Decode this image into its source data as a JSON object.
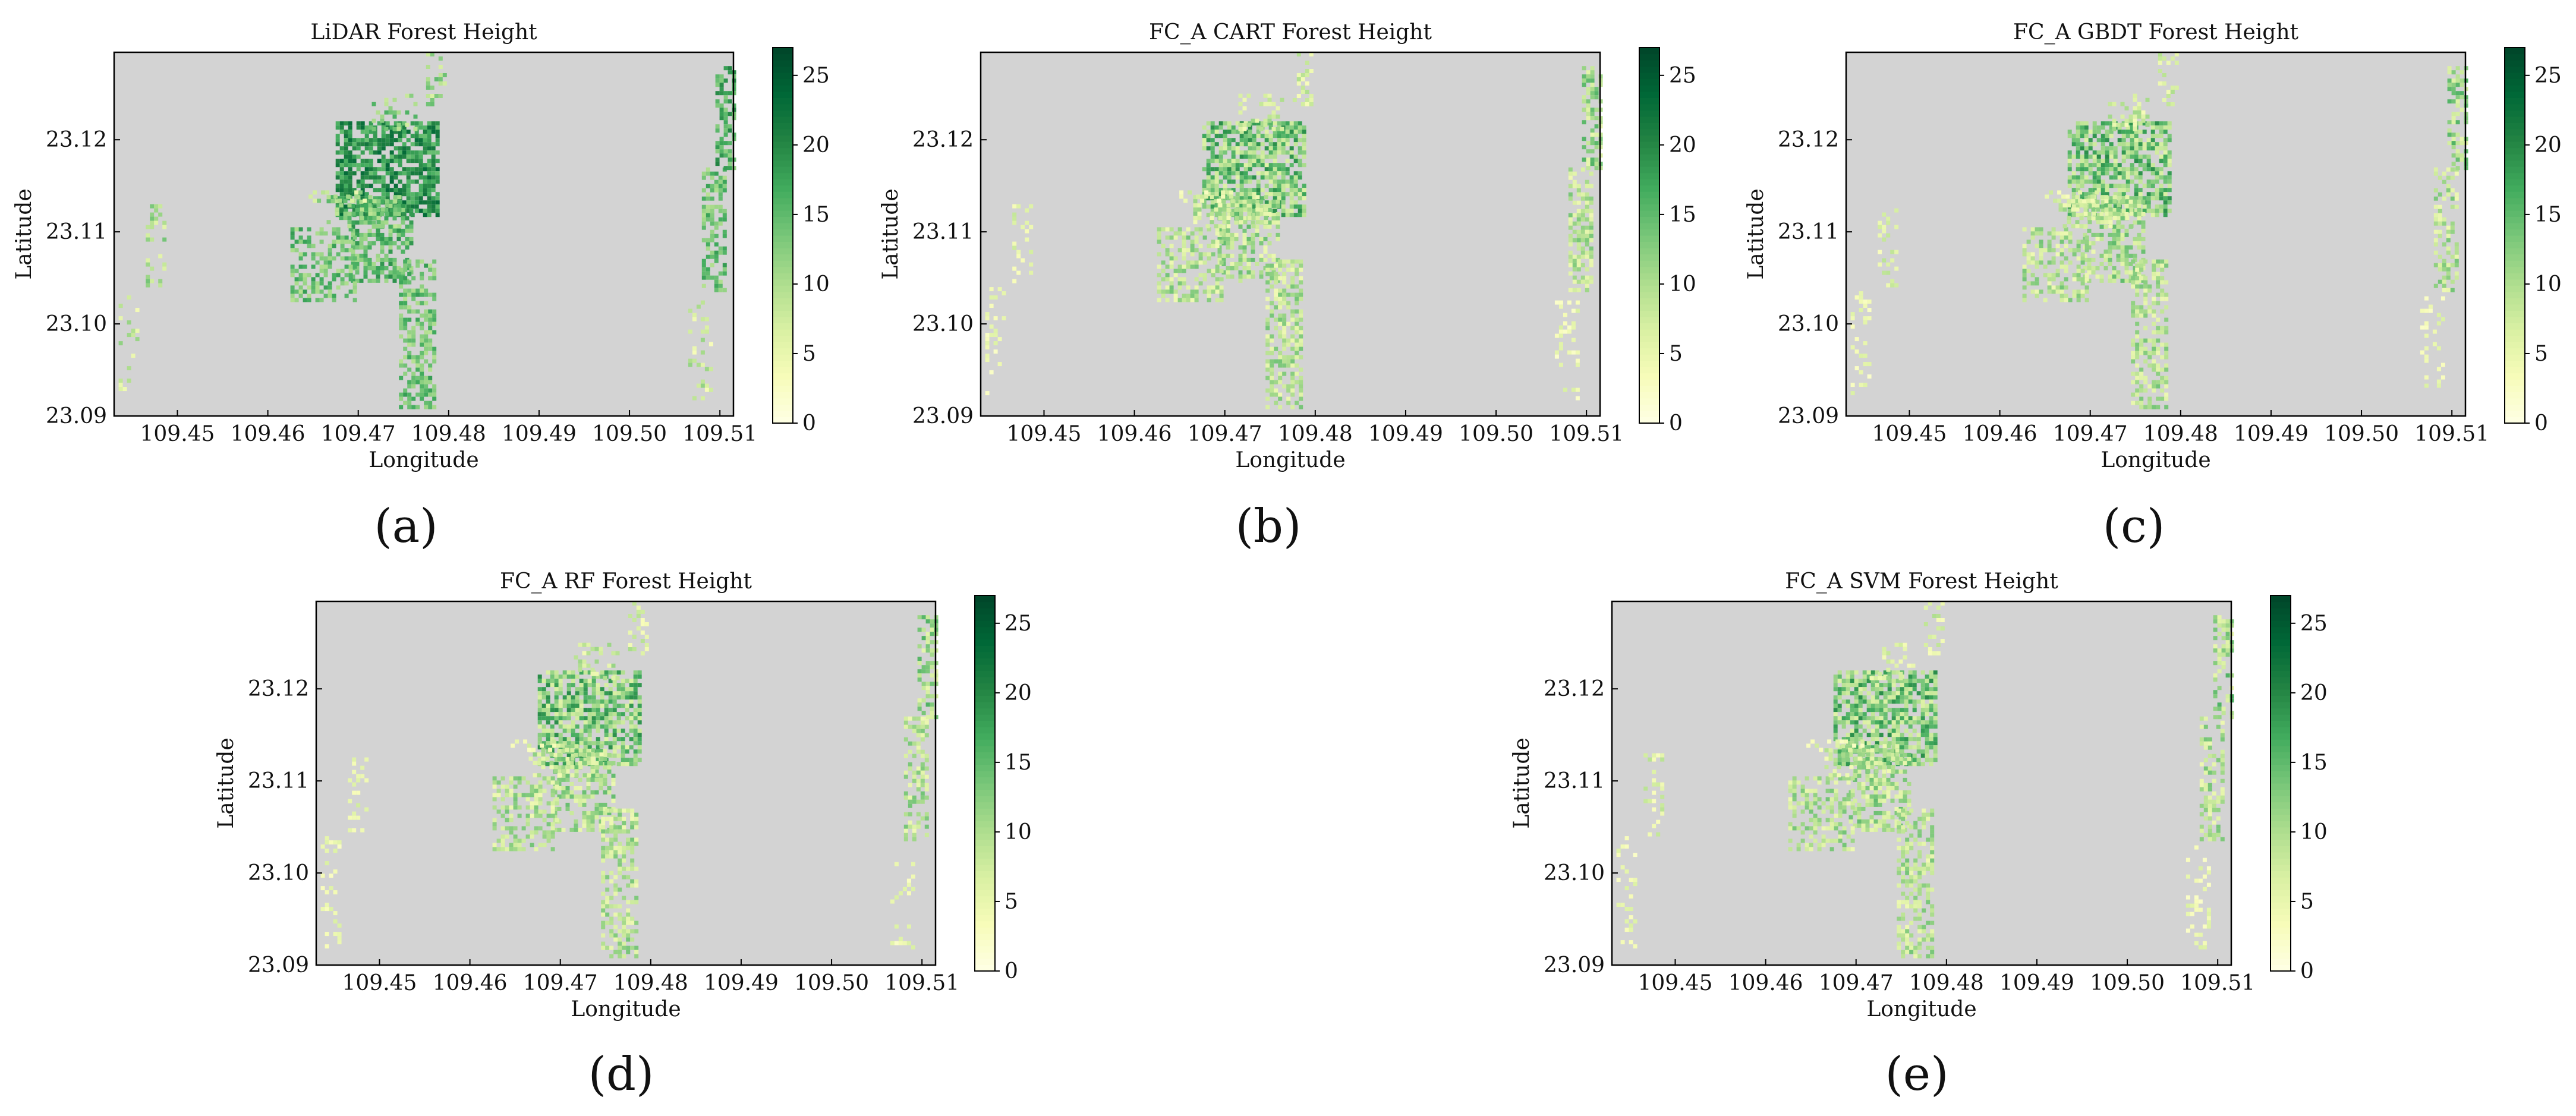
{
  "figure": {
    "subfigure_labels": [
      "(a)",
      "(b)",
      "(c)",
      "(d)",
      "(e)"
    ]
  },
  "colors": {
    "background": "#d3d3d3",
    "colormap": [
      "#ffffe5",
      "#f7fcb9",
      "#d9f0a3",
      "#addd8e",
      "#78c679",
      "#41ab5d",
      "#238443",
      "#006837",
      "#004529"
    ]
  },
  "chart_data": [
    {
      "type": "heatmap",
      "id": "a",
      "title": "LiDAR Forest Height",
      "xlabel": "Longitude",
      "ylabel": "Latitude",
      "xlim": [
        109.443,
        109.5115
      ],
      "ylim": [
        23.09,
        23.1295
      ],
      "xticks": [
        "109.45",
        "109.46",
        "109.47",
        "109.48",
        "109.49",
        "109.50",
        "109.51"
      ],
      "yticks": [
        "23.09",
        "23.10",
        "23.11",
        "23.12"
      ],
      "colorbar": {
        "range": [
          0,
          27
        ],
        "ticks": [
          "0",
          "5",
          "10",
          "15",
          "20",
          "25"
        ]
      },
      "grid": false
    },
    {
      "type": "heatmap",
      "id": "b",
      "title": "FC_A CART Forest Height",
      "xlabel": "Longitude",
      "ylabel": "Latitude",
      "xlim": [
        109.443,
        109.5115
      ],
      "ylim": [
        23.09,
        23.1295
      ],
      "xticks": [
        "109.45",
        "109.46",
        "109.47",
        "109.48",
        "109.49",
        "109.50",
        "109.51"
      ],
      "yticks": [
        "23.09",
        "23.10",
        "23.11",
        "23.12"
      ],
      "colorbar": {
        "range": [
          0,
          27
        ],
        "ticks": [
          "0",
          "5",
          "10",
          "15",
          "20",
          "25"
        ]
      },
      "grid": false
    },
    {
      "type": "heatmap",
      "id": "c",
      "title": "FC_A GBDT Forest Height",
      "xlabel": "Longitude",
      "ylabel": "Latitude",
      "xlim": [
        109.443,
        109.5115
      ],
      "ylim": [
        23.09,
        23.1295
      ],
      "xticks": [
        "109.45",
        "109.46",
        "109.47",
        "109.48",
        "109.49",
        "109.50",
        "109.51"
      ],
      "yticks": [
        "23.09",
        "23.10",
        "23.11",
        "23.12"
      ],
      "colorbar": {
        "range": [
          0,
          27
        ],
        "ticks": [
          "0",
          "5",
          "10",
          "15",
          "20",
          "25"
        ]
      },
      "grid": false
    },
    {
      "type": "heatmap",
      "id": "d",
      "title": "FC_A RF Forest Height",
      "xlabel": "Longitude",
      "ylabel": "Latitude",
      "xlim": [
        109.443,
        109.5115
      ],
      "ylim": [
        23.09,
        23.1295
      ],
      "xticks": [
        "109.45",
        "109.46",
        "109.47",
        "109.48",
        "109.49",
        "109.50",
        "109.51"
      ],
      "yticks": [
        "23.09",
        "23.10",
        "23.11",
        "23.12"
      ],
      "colorbar": {
        "range": [
          0,
          27
        ],
        "ticks": [
          "0",
          "5",
          "10",
          "15",
          "20",
          "25"
        ]
      },
      "grid": false
    },
    {
      "type": "heatmap",
      "id": "e",
      "title": "FC_A SVM Forest Height",
      "xlabel": "Longitude",
      "ylabel": "Latitude",
      "xlim": [
        109.443,
        109.5115
      ],
      "ylim": [
        23.09,
        23.1295
      ],
      "xticks": [
        "109.45",
        "109.46",
        "109.47",
        "109.48",
        "109.49",
        "109.50",
        "109.51"
      ],
      "yticks": [
        "23.09",
        "23.10",
        "23.11",
        "23.12"
      ],
      "colorbar": {
        "range": [
          0,
          27
        ],
        "ticks": [
          "0",
          "5",
          "10",
          "15",
          "20",
          "25"
        ]
      },
      "grid": false
    }
  ]
}
